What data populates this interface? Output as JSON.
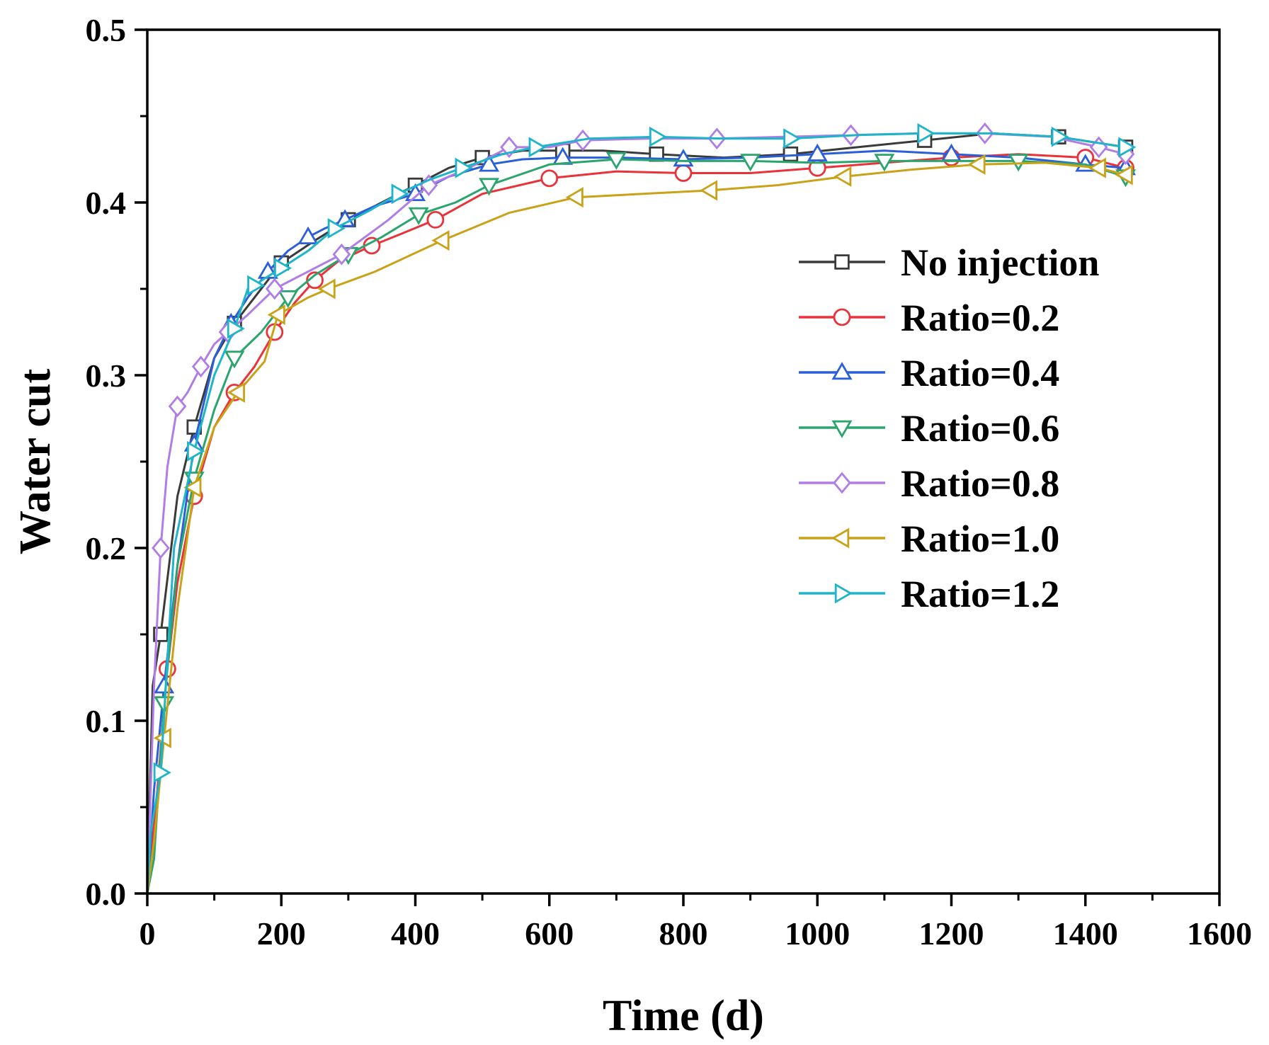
{
  "chart_data": {
    "type": "line",
    "title": "",
    "xlabel": "Time (d)",
    "ylabel": "Water cut",
    "xlim": [
      0,
      1600
    ],
    "ylim": [
      0,
      0.5
    ],
    "xticks": [
      0,
      200,
      400,
      600,
      800,
      1000,
      1200,
      1400,
      1600
    ],
    "xtick_labels": [
      "0",
      "200",
      "400",
      "600",
      "800",
      "1000",
      "1200",
      "1400",
      "1600"
    ],
    "yticks": [
      0,
      0.1,
      0.2,
      0.3,
      0.4,
      0.5
    ],
    "ytick_labels": [
      "0.0",
      "0.1",
      "0.2",
      "0.3",
      "0.4",
      "0.5"
    ],
    "grid": false,
    "legend_position": "center-right",
    "series": [
      {
        "name": "No injection",
        "color": "#3a3a3a",
        "marker": "square",
        "x": [
          0,
          8,
          20,
          45,
          70,
          100,
          130,
          160,
          200,
          250,
          300,
          350,
          400,
          450,
          500,
          560,
          620,
          680,
          760,
          860,
          960,
          1060,
          1160,
          1260,
          1360,
          1460
        ],
        "y": [
          0.0,
          0.12,
          0.15,
          0.23,
          0.27,
          0.31,
          0.33,
          0.345,
          0.365,
          0.378,
          0.39,
          0.4,
          0.41,
          0.42,
          0.426,
          0.43,
          0.43,
          0.43,
          0.428,
          0.426,
          0.428,
          0.432,
          0.436,
          0.44,
          0.438,
          0.432
        ]
      },
      {
        "name": "Ratio=0.2",
        "color": "#e8333a",
        "marker": "circle",
        "x": [
          0,
          15,
          30,
          45,
          70,
          100,
          130,
          160,
          190,
          220,
          250,
          285,
          335,
          380,
          430,
          500,
          600,
          700,
          800,
          900,
          1000,
          1100,
          1200,
          1300,
          1400,
          1460
        ],
        "y": [
          0.0,
          0.06,
          0.13,
          0.18,
          0.23,
          0.27,
          0.29,
          0.305,
          0.325,
          0.342,
          0.355,
          0.366,
          0.375,
          0.382,
          0.39,
          0.405,
          0.414,
          0.418,
          0.417,
          0.417,
          0.42,
          0.423,
          0.426,
          0.428,
          0.426,
          0.42
        ]
      },
      {
        "name": "Ratio=0.4",
        "color": "#2b5fd9",
        "marker": "triangle-up",
        "x": [
          0,
          10,
          25,
          45,
          70,
          100,
          125,
          150,
          180,
          210,
          240,
          265,
          295,
          340,
          400,
          450,
          510,
          560,
          620,
          700,
          800,
          900,
          1000,
          1100,
          1200,
          1300,
          1400,
          1460
        ],
        "y": [
          0.0,
          0.06,
          0.12,
          0.19,
          0.26,
          0.31,
          0.33,
          0.345,
          0.36,
          0.372,
          0.38,
          0.385,
          0.39,
          0.398,
          0.405,
          0.415,
          0.422,
          0.425,
          0.426,
          0.426,
          0.425,
          0.426,
          0.428,
          0.43,
          0.428,
          0.426,
          0.422,
          0.42
        ]
      },
      {
        "name": "Ratio=0.6",
        "color": "#2aa56e",
        "marker": "triangle-down",
        "x": [
          0,
          10,
          25,
          45,
          70,
          100,
          130,
          170,
          210,
          250,
          300,
          350,
          405,
          460,
          510,
          600,
          700,
          800,
          900,
          1000,
          1100,
          1200,
          1300,
          1400,
          1460
        ],
        "y": [
          0.0,
          0.02,
          0.11,
          0.19,
          0.24,
          0.28,
          0.31,
          0.325,
          0.345,
          0.358,
          0.37,
          0.38,
          0.393,
          0.4,
          0.41,
          0.422,
          0.425,
          0.424,
          0.424,
          0.423,
          0.424,
          0.424,
          0.424,
          0.422,
          0.415
        ]
      },
      {
        "name": "Ratio=0.8",
        "color": "#b07ce6",
        "marker": "diamond",
        "x": [
          0,
          10,
          20,
          30,
          45,
          60,
          80,
          100,
          120,
          150,
          190,
          240,
          290,
          360,
          420,
          480,
          540,
          600,
          650,
          750,
          850,
          950,
          1050,
          1150,
          1250,
          1350,
          1420,
          1460
        ],
        "y": [
          0.0,
          0.12,
          0.2,
          0.247,
          0.282,
          0.29,
          0.305,
          0.318,
          0.325,
          0.335,
          0.35,
          0.36,
          0.37,
          0.39,
          0.41,
          0.42,
          0.432,
          0.432,
          0.436,
          0.437,
          0.437,
          0.438,
          0.439,
          0.44,
          0.44,
          0.438,
          0.432,
          0.428
        ]
      },
      {
        "name": "Ratio=1.0",
        "color": "#c9a218",
        "marker": "triangle-left",
        "x": [
          0,
          10,
          25,
          45,
          70,
          100,
          135,
          175,
          195,
          240,
          270,
          340,
          440,
          540,
          640,
          740,
          840,
          940,
          1040,
          1140,
          1240,
          1340,
          1420,
          1460
        ],
        "y": [
          0.0,
          0.03,
          0.09,
          0.165,
          0.235,
          0.27,
          0.29,
          0.308,
          0.335,
          0.345,
          0.35,
          0.36,
          0.378,
          0.394,
          0.403,
          0.405,
          0.407,
          0.41,
          0.415,
          0.419,
          0.422,
          0.423,
          0.42,
          0.416
        ]
      },
      {
        "name": "Ratio=1.2",
        "color": "#1fb5c8",
        "marker": "triangle-right",
        "x": [
          0,
          5,
          20,
          40,
          70,
          100,
          130,
          150,
          160,
          175,
          200,
          240,
          280,
          330,
          375,
          420,
          470,
          530,
          580,
          660,
          760,
          860,
          960,
          1060,
          1160,
          1260,
          1360,
          1460
        ],
        "y": [
          0.0,
          0.035,
          0.07,
          0.2,
          0.256,
          0.3,
          0.327,
          0.35,
          0.352,
          0.356,
          0.362,
          0.372,
          0.385,
          0.395,
          0.405,
          0.413,
          0.42,
          0.428,
          0.432,
          0.437,
          0.438,
          0.437,
          0.437,
          0.439,
          0.44,
          0.44,
          0.438,
          0.432
        ]
      }
    ]
  }
}
